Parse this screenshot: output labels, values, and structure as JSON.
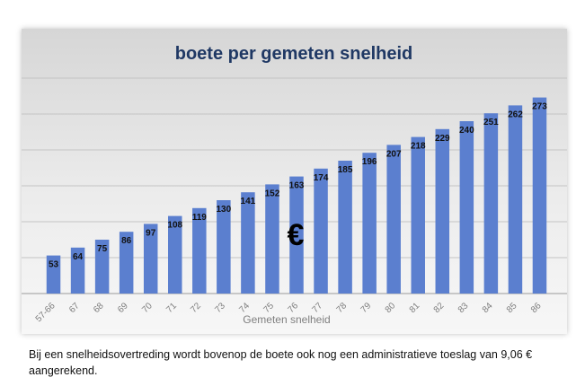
{
  "chart_data": {
    "type": "bar",
    "title": "boete per gemeten snelheid",
    "xlabel": "Gemeten snelheid",
    "ylabel": "",
    "categories": [
      "57-66",
      "67",
      "68",
      "69",
      "70",
      "71",
      "72",
      "73",
      "74",
      "75",
      "76",
      "77",
      "78",
      "79",
      "80",
      "81",
      "82",
      "83",
      "84",
      "85",
      "86"
    ],
    "values": [
      53,
      64,
      75,
      86,
      97,
      108,
      119,
      130,
      141,
      152,
      163,
      174,
      185,
      196,
      207,
      218,
      229,
      240,
      251,
      262,
      273
    ],
    "ylim": [
      0,
      300
    ],
    "grid": true,
    "bar_color": "#5b7fcf",
    "annotation": "€"
  },
  "caption": "Bij een snelheidsovertreding wordt bovenop de boete ook nog een administratieve toeslag van 9,06 € aangerekend."
}
